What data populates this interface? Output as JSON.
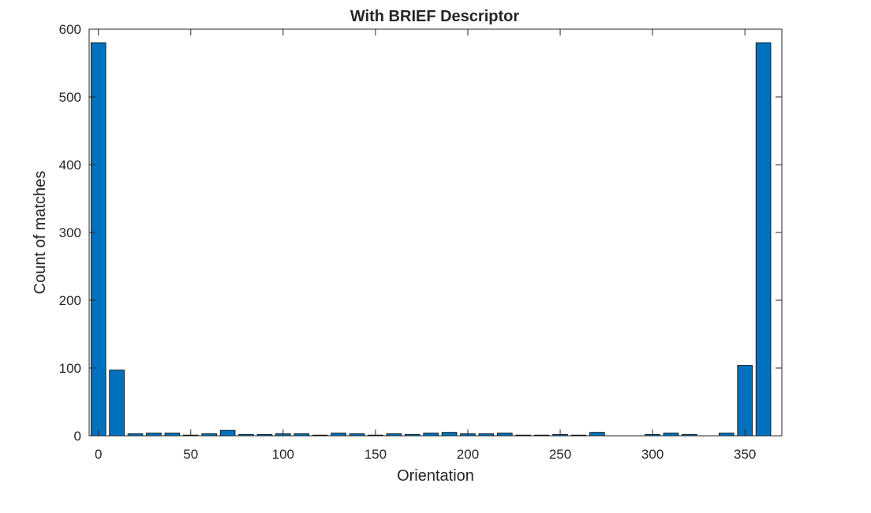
{
  "chart_data": {
    "type": "bar",
    "title": "With BRIEF Descriptor",
    "xlabel": "Orientation",
    "ylabel": "Count of matches",
    "xlim": [
      -5,
      370
    ],
    "ylim": [
      0,
      600
    ],
    "xticks": [
      0,
      50,
      100,
      150,
      200,
      250,
      300,
      350
    ],
    "yticks": [
      0,
      100,
      200,
      300,
      400,
      500,
      600
    ],
    "bar_width": 8,
    "bar_color": "#0072BD",
    "grid": false,
    "x": [
      0,
      10,
      20,
      30,
      40,
      50,
      60,
      70,
      80,
      90,
      100,
      110,
      120,
      130,
      140,
      150,
      160,
      170,
      180,
      190,
      200,
      210,
      220,
      230,
      240,
      250,
      260,
      270,
      280,
      290,
      300,
      310,
      320,
      330,
      340,
      350,
      360
    ],
    "values": [
      580,
      97,
      3,
      4,
      4,
      1,
      3,
      8,
      2,
      2,
      3,
      3,
      1,
      4,
      3,
      1,
      3,
      2,
      4,
      5,
      3,
      3,
      4,
      1,
      1,
      2,
      1,
      5,
      0,
      0,
      2,
      4,
      2,
      0,
      4,
      104,
      580
    ]
  }
}
